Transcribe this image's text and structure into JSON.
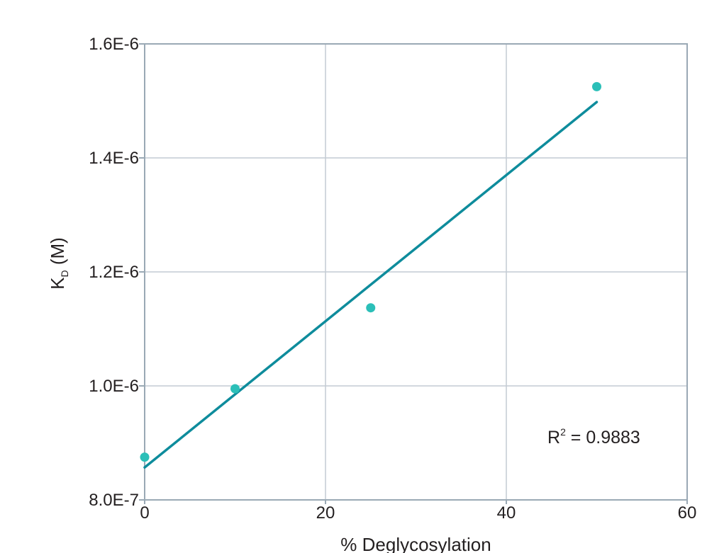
{
  "chart_data": {
    "type": "scatter",
    "title": "",
    "xlabel": "% Deglycosylation",
    "ylabel_main": "K",
    "ylabel_sub": "D",
    "ylabel_unit": " (M)",
    "xlim": [
      0,
      60
    ],
    "ylim": [
      8e-07,
      1.6e-06
    ],
    "x_ticks": [
      0,
      20,
      40,
      60
    ],
    "x_tick_labels": [
      "0",
      "20",
      "40",
      "60"
    ],
    "y_ticks": [
      8e-07,
      1e-06,
      1.2e-06,
      1.4e-06,
      1.6e-06
    ],
    "y_tick_labels": [
      "8.0E-7",
      "1.0E-6",
      "1.2E-6",
      "1.4E-6",
      "1.6E-6"
    ],
    "grid": true,
    "series": [
      {
        "points": [
          {
            "x": 0,
            "y": 8.75e-07
          },
          {
            "x": 10,
            "y": 9.95e-07
          },
          {
            "x": 25,
            "y": 1.137e-06
          },
          {
            "x": 50,
            "y": 1.525e-06
          }
        ]
      }
    ],
    "trendline": {
      "x_start": 0,
      "y_start": 8.57e-07,
      "x_end": 50,
      "y_end": 1.498e-06
    },
    "annotation": {
      "main": "R",
      "sup": "2",
      "rest": " = 0.9883"
    },
    "colors": {
      "points": "#2bbfb8",
      "trendline": "#0e8c9c",
      "grid": "#c3ccd3",
      "frame": "#9aa9b5",
      "text": "#231f20"
    }
  }
}
